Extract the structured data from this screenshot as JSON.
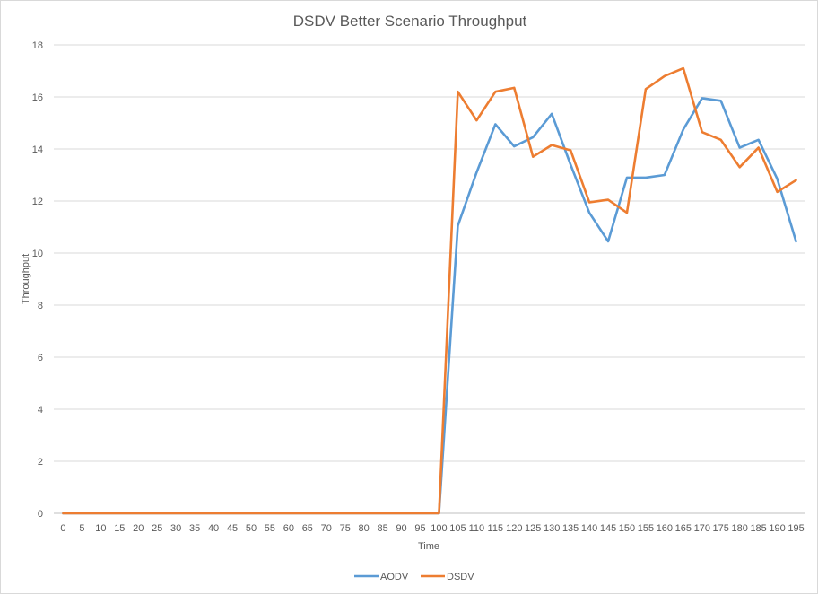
{
  "chart_data": {
    "type": "line",
    "title": "DSDV Better Scenario Throughput",
    "xlabel": "Time",
    "ylabel": "Throughput",
    "ylim": [
      0,
      18
    ],
    "yticks": [
      "0",
      "2",
      "4",
      "6",
      "8",
      "10",
      "12",
      "14",
      "16",
      "18"
    ],
    "grid": true,
    "legend_position": "bottom",
    "categories": [
      "0",
      "5",
      "10",
      "15",
      "20",
      "25",
      "30",
      "35",
      "40",
      "45",
      "50",
      "55",
      "60",
      "65",
      "70",
      "75",
      "80",
      "85",
      "90",
      "95",
      "100",
      "105",
      "110",
      "115",
      "120",
      "125",
      "130",
      "135",
      "140",
      "145",
      "150",
      "155",
      "160",
      "165",
      "170",
      "175",
      "180",
      "185",
      "190",
      "195"
    ],
    "series": [
      {
        "name": "AODV",
        "color": "#5b9bd5",
        "values": [
          0,
          0,
          0,
          0,
          0,
          0,
          0,
          0,
          0,
          0,
          0,
          0,
          0,
          0,
          0,
          0,
          0,
          0,
          0,
          0,
          0,
          11.05,
          13.1,
          14.95,
          14.1,
          14.45,
          15.35,
          13.4,
          11.55,
          10.45,
          12.9,
          12.9,
          13.0,
          14.75,
          15.95,
          15.85,
          14.05,
          14.35,
          12.85,
          10.45
        ]
      },
      {
        "name": "DSDV",
        "color": "#ed7d31",
        "values": [
          0,
          0,
          0,
          0,
          0,
          0,
          0,
          0,
          0,
          0,
          0,
          0,
          0,
          0,
          0,
          0,
          0,
          0,
          0,
          0,
          0,
          16.2,
          15.1,
          16.2,
          16.35,
          13.7,
          14.15,
          13.95,
          11.95,
          12.05,
          11.55,
          16.3,
          16.8,
          17.1,
          14.65,
          14.35,
          13.3,
          14.05,
          12.35,
          12.8
        ]
      }
    ]
  }
}
